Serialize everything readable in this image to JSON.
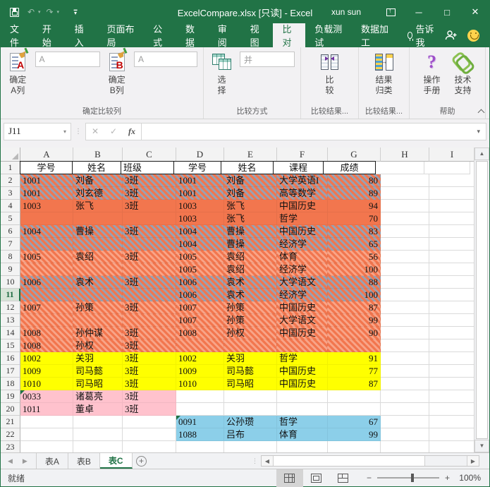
{
  "colors": {
    "brand_green": "#217346",
    "coral": "#F2764E",
    "blue_gray": "#97A2B4",
    "light_stripe": "#F8A488",
    "yellow": "#FFFF00",
    "pink": "#FFC2CD",
    "cyan": "#8CCFE9"
  },
  "title_bar": {
    "title": "ExcelCompare.xlsx  [只读] - Excel",
    "user": "xun sun"
  },
  "ribbon": {
    "tabs": [
      {
        "label": "文件",
        "active": false
      },
      {
        "label": "开始",
        "active": false
      },
      {
        "label": "插入",
        "active": false
      },
      {
        "label": "页面布局",
        "active": false
      },
      {
        "label": "公式",
        "active": false
      },
      {
        "label": "数据",
        "active": false
      },
      {
        "label": "审阅",
        "active": false
      },
      {
        "label": "视图",
        "active": false
      },
      {
        "label": "比对",
        "active": true
      },
      {
        "label": "负载测试",
        "active": false
      },
      {
        "label": "数据加工",
        "active": false
      },
      {
        "label": "告诉我",
        "active": false,
        "bulb": true
      }
    ],
    "groups": [
      {
        "label": "确定比较列"
      },
      {
        "label": "比较方式"
      },
      {
        "label": "比较结果..."
      },
      {
        "label": "比较结果..."
      },
      {
        "label": "帮助"
      }
    ],
    "buttons": {
      "confirm_a": {
        "l1": "确定",
        "l2": "A列"
      },
      "confirm_b": {
        "l1": "确定",
        "l2": "B列"
      },
      "select": {
        "l1": "选",
        "l2": "择"
      },
      "compare": {
        "l1": "比",
        "l2": "较"
      },
      "classify": {
        "l1": "结果",
        "l2": "归类"
      },
      "manual": {
        "l1": "操作",
        "l2": "手册"
      },
      "support": {
        "l1": "技术",
        "l2": "支持"
      }
    },
    "inputs": {
      "col_a_value": "A",
      "col_b_value": "A",
      "mode_value": "并"
    }
  },
  "formula_bar": {
    "name_box": "J11",
    "fx_label": "fx",
    "formula_value": ""
  },
  "grid": {
    "columns": [
      "A",
      "B",
      "C",
      "D",
      "E",
      "F",
      "G",
      "H",
      "I"
    ],
    "active_row": 11,
    "rows": [
      {
        "n": 1,
        "header": true,
        "fill": "",
        "cells": [
          "学号",
          "姓名",
          "班级",
          "学号",
          "姓名",
          "课程",
          "成绩"
        ]
      },
      {
        "n": 2,
        "fill": "hg",
        "cells": [
          "1001",
          "刘备",
          "3班",
          "1001",
          "刘备",
          "大学英语I",
          "80"
        ]
      },
      {
        "n": 3,
        "fill": "hg",
        "cells": [
          "1001",
          "刘玄德",
          "3班",
          "1001",
          "刘备",
          "高等数学",
          "89"
        ]
      },
      {
        "n": 4,
        "fill": "sc",
        "cells": [
          "1003",
          "张飞",
          "3班",
          "1003",
          "张飞",
          "中国历史",
          "94"
        ]
      },
      {
        "n": 5,
        "fill": "sc",
        "cells": [
          "",
          "",
          "",
          "1003",
          "张飞",
          "哲学",
          "70"
        ]
      },
      {
        "n": 6,
        "fill": "hg",
        "cells": [
          "1004",
          "曹操",
          "3班",
          "1004",
          "曹操",
          "中国历史",
          "83"
        ]
      },
      {
        "n": 7,
        "fill": "hg",
        "cells": [
          "",
          "",
          "",
          "1004",
          "曹操",
          "经济学",
          "65"
        ]
      },
      {
        "n": 8,
        "fill": "hl",
        "cells": [
          "1005",
          "袁绍",
          "3班",
          "1005",
          "袁绍",
          "体育",
          "56"
        ]
      },
      {
        "n": 9,
        "fill": "hl",
        "cells": [
          "",
          "",
          "",
          "1005",
          "袁绍",
          "经济学",
          "100"
        ]
      },
      {
        "n": 10,
        "fill": "hg",
        "cells": [
          "1006",
          "袁术",
          "3班",
          "1006",
          "袁术",
          "大学语文",
          "88"
        ]
      },
      {
        "n": 11,
        "fill": "hg",
        "cells": [
          "",
          "",
          "",
          "1006",
          "袁术",
          "经济学",
          "100"
        ]
      },
      {
        "n": 12,
        "fill": "hl",
        "cells": [
          "1007",
          "孙策",
          "3班",
          "1007",
          "孙策",
          "中国历史",
          "87"
        ]
      },
      {
        "n": 13,
        "fill": "hl",
        "cells": [
          "",
          "",
          "",
          "1007",
          "孙策",
          "大学语文",
          "99"
        ]
      },
      {
        "n": 14,
        "fill": "hl",
        "cells": [
          "1008",
          "孙仲谋",
          "3班",
          "1008",
          "孙权",
          "中国历史",
          "90"
        ]
      },
      {
        "n": 15,
        "fill": "hl",
        "cells": [
          "1008",
          "孙权",
          "3班",
          "",
          "",
          "",
          ""
        ]
      },
      {
        "n": 16,
        "fill": "y",
        "cells": [
          "1002",
          "关羽",
          "3班",
          "1002",
          "关羽",
          "哲学",
          "91"
        ]
      },
      {
        "n": 17,
        "fill": "y",
        "cells": [
          "1009",
          "司马懿",
          "3班",
          "1009",
          "司马懿",
          "中国历史",
          "77"
        ]
      },
      {
        "n": 18,
        "fill": "y",
        "cells": [
          "1010",
          "司马昭",
          "3班",
          "1010",
          "司马昭",
          "中国历史",
          "87"
        ]
      },
      {
        "n": 19,
        "fill": "pk",
        "err": [
          0
        ],
        "cells": [
          "0033",
          "诸葛亮",
          "3班",
          "",
          "",
          "",
          ""
        ]
      },
      {
        "n": 20,
        "fill": "pk",
        "cells": [
          "1011",
          "董卓",
          "3班",
          "",
          "",
          "",
          ""
        ]
      },
      {
        "n": 21,
        "fill": "cy",
        "err": [
          3
        ],
        "cells": [
          "",
          "",
          "",
          "0091",
          "公孙瓒",
          "哲学",
          "67"
        ]
      },
      {
        "n": 22,
        "fill": "cy",
        "cells": [
          "",
          "",
          "",
          "1088",
          "吕布",
          "体育",
          "99"
        ]
      },
      {
        "n": 23,
        "fill": "",
        "cells": [
          "",
          "",
          "",
          "",
          "",
          "",
          ""
        ]
      }
    ]
  },
  "sheet_tabs": [
    {
      "label": "表A",
      "active": false
    },
    {
      "label": "表B",
      "active": false
    },
    {
      "label": "表C",
      "active": true
    }
  ],
  "status_bar": {
    "ready": "就绪",
    "zoom": "100%"
  }
}
